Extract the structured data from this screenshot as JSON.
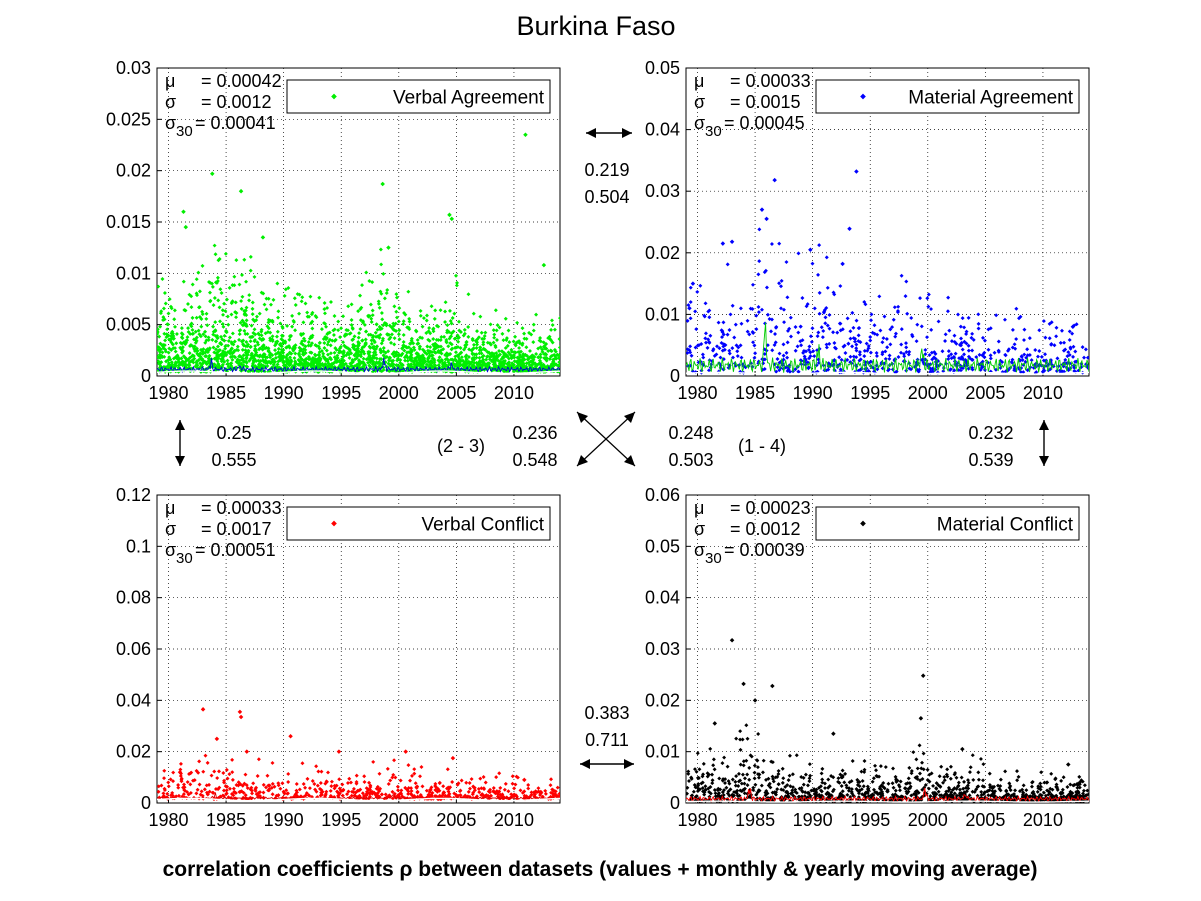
{
  "title": "Burkina Faso",
  "footer": "correlation coefficients ρ between datasets (values + monthly & yearly moving average)",
  "chart_data": [
    {
      "id": "tl",
      "type": "scatter",
      "legend": "Verbal Agreement",
      "color": "#00ee00",
      "stats": {
        "mu": "= 0.00042",
        "sigma": "= 0.0012",
        "sigma30": "= 0.00041"
      },
      "x_range": [
        1979,
        2014
      ],
      "x_ticks": [
        "1980",
        "1985",
        "1990",
        "1995",
        "2000",
        "2005",
        "2010"
      ],
      "ylim": [
        0,
        0.03
      ],
      "y_ticks": [
        "0",
        "0.005",
        "0.01",
        "0.015",
        "0.02",
        "0.025",
        "0.03"
      ],
      "base": 0.0004,
      "scale": 0.0023,
      "points_per_year": 72,
      "decay": 0.6,
      "bursts": [
        [
          1983.7,
          0.8
        ],
        [
          1986.2,
          0.7
        ],
        [
          1998.7,
          1.0
        ],
        [
          2004.5,
          0.6
        ]
      ],
      "outliers": [
        [
          1981.3,
          0.016
        ],
        [
          1981.5,
          0.0145
        ],
        [
          1983.8,
          0.0197
        ],
        [
          1986.3,
          0.018
        ],
        [
          1998.6,
          0.0187
        ],
        [
          2004.4,
          0.0157
        ],
        [
          2004.6,
          0.0153
        ],
        [
          2011.0,
          0.0235
        ],
        [
          2012.6,
          0.0108
        ],
        [
          1988.2,
          0.0135
        ],
        [
          1999.1,
          0.0125
        ]
      ],
      "inner_color": "#0000dd",
      "inner_scale": 0.0005
    },
    {
      "id": "tr",
      "type": "scatter",
      "legend": "Material Agreement",
      "color": "#0000ff",
      "stats": {
        "mu": "= 0.00033",
        "sigma": "= 0.0015",
        "sigma30": "= 0.00045"
      },
      "x_range": [
        1979,
        2014
      ],
      "x_ticks": [
        "1980",
        "1985",
        "1990",
        "1995",
        "2000",
        "2005",
        "2010"
      ],
      "ylim": [
        0,
        0.05
      ],
      "y_ticks": [
        "0",
        "0.01",
        "0.02",
        "0.03",
        "0.04",
        "0.05"
      ],
      "base": 0.0005,
      "scale": 0.004,
      "points_per_year": 22,
      "decay": 0.9,
      "bursts": [
        [
          1985.9,
          1.2
        ],
        [
          1990.5,
          0.6
        ],
        [
          1999.5,
          0.5
        ]
      ],
      "outliers": [
        [
          1986.7,
          0.0318
        ],
        [
          1993.8,
          0.0332
        ],
        [
          1993.2,
          0.0239
        ],
        [
          1985.6,
          0.027
        ],
        [
          1986.0,
          0.0255
        ],
        [
          1982.2,
          0.0215
        ],
        [
          1983.0,
          0.0218
        ],
        [
          1989.8,
          0.0205
        ],
        [
          1992.6,
          0.0182
        ],
        [
          1979.3,
          0.011
        ],
        [
          1979.6,
          0.015
        ],
        [
          2012.6,
          0.008
        ]
      ],
      "inner_color": "#00cc00",
      "inner_scale": 0.0025
    },
    {
      "id": "bl",
      "type": "scatter",
      "legend": "Verbal Conflict",
      "color": "#ff0000",
      "stats": {
        "mu": "= 0.00033",
        "sigma": "= 0.0017",
        "sigma30": "= 0.00051"
      },
      "x_range": [
        1979,
        2014
      ],
      "x_ticks": [
        "1980",
        "1985",
        "1990",
        "1995",
        "2000",
        "2005",
        "2010"
      ],
      "ylim": [
        0,
        0.12
      ],
      "y_ticks": [
        "0",
        "0.02",
        "0.04",
        "0.06",
        "0.08",
        "0.1",
        "0.12"
      ],
      "base": 0.0015,
      "scale": 0.004,
      "points_per_year": 18,
      "decay": 0.7,
      "bursts": [
        [
          1984.0,
          1.3
        ],
        [
          1999.5,
          0.7
        ]
      ],
      "outliers": [
        [
          1983.0,
          0.0365
        ],
        [
          1986.2,
          0.0355
        ],
        [
          1986.3,
          0.0335
        ],
        [
          1990.6,
          0.026
        ],
        [
          1981.0,
          0.012
        ],
        [
          1984.2,
          0.025
        ],
        [
          1986.8,
          0.02
        ],
        [
          1994.8,
          0.02
        ],
        [
          2000.6,
          0.02
        ],
        [
          2004.7,
          0.0175
        ],
        [
          2010.9,
          0.009
        ]
      ],
      "inner_color": "#dd0000",
      "inner_scale": 0.0008
    },
    {
      "id": "br",
      "type": "scatter",
      "legend": "Material Conflict",
      "color": "#000000",
      "stats": {
        "mu": "= 0.00023",
        "sigma": "= 0.0012",
        "sigma30": "= 0.00039"
      },
      "x_range": [
        1979,
        2014
      ],
      "x_ticks": [
        "1980",
        "1985",
        "1990",
        "1995",
        "2000",
        "2005",
        "2010"
      ],
      "ylim": [
        0,
        0.06
      ],
      "y_ticks": [
        "0",
        "0.01",
        "0.02",
        "0.03",
        "0.04",
        "0.05",
        "0.06"
      ],
      "base": 0.0003,
      "scale": 0.0024,
      "points_per_year": 30,
      "decay": 0.6,
      "bursts": [
        [
          1984.5,
          1.1
        ],
        [
          1999.8,
          1.2
        ],
        [
          2003.2,
          0.8
        ]
      ],
      "outliers": [
        [
          1983.0,
          0.0317
        ],
        [
          1984.0,
          0.0232
        ],
        [
          1986.5,
          0.0228
        ],
        [
          1985.0,
          0.02
        ],
        [
          1999.6,
          0.0248
        ],
        [
          1999.4,
          0.0165
        ],
        [
          1981.5,
          0.0155
        ],
        [
          1991.8,
          0.0135
        ],
        [
          2003.0,
          0.0105
        ],
        [
          2012.2,
          0.0075
        ]
      ],
      "inner_color": "#ff0000",
      "inner_scale": 0.001
    }
  ],
  "correlations": {
    "top": [
      "0.219",
      "0.504"
    ],
    "bottom": [
      "0.383",
      "0.711"
    ],
    "left": [
      "0.25",
      "0.555"
    ],
    "right": [
      "0.232",
      "0.539"
    ],
    "diag_23_label": "(2 - 3)",
    "diag_23": [
      "0.236",
      "0.548"
    ],
    "diag_14_label": "(1 - 4)",
    "diag_14": [
      "0.248",
      "0.503"
    ]
  }
}
